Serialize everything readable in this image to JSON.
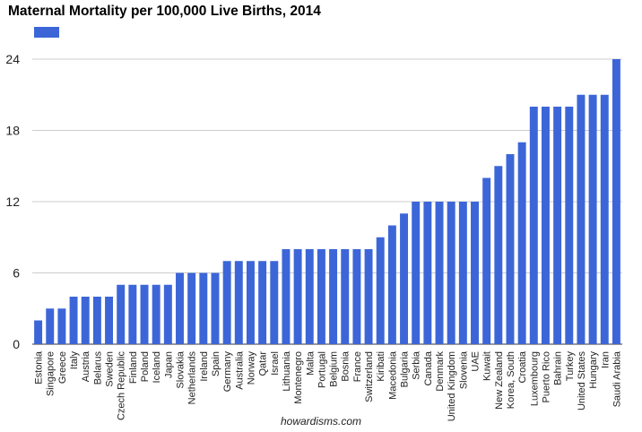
{
  "colors": {
    "bar": "#3c66d8",
    "grid": "#cccccc",
    "axis": "#333333",
    "text": "#222222"
  },
  "credit": "howardisms.com",
  "chart_data": {
    "type": "bar",
    "title": "Maternal Mortality per 100,000 Live Births, 2014",
    "legend": {
      "placement": "top-left",
      "series_name": ""
    },
    "grid": true,
    "ylim": [
      0,
      24
    ],
    "yticks": [
      0,
      6,
      12,
      18,
      24
    ],
    "categories": [
      "Estonia",
      "Singapore",
      "Greece",
      "Italy",
      "Austria",
      "Belarus",
      "Sweden",
      "Czech Republic",
      "Finland",
      "Poland",
      "Iceland",
      "Japan",
      "Slovakia",
      "Netherlands",
      "Ireland",
      "Spain",
      "Germany",
      "Australia",
      "Norway",
      "Qatar",
      "Israel",
      "Lithuania",
      "Montenegro",
      "Malta",
      "Portugal",
      "Belgium",
      "Bosnia",
      "France",
      "Switzerland",
      "Kiribati",
      "Macedonia",
      "Bulgaria",
      "Serbia",
      "Canada",
      "Denmark",
      "United Kingdom",
      "Slovenia",
      "UAE",
      "Kuwait",
      "New Zealand",
      "Korea, South",
      "Croatia",
      "Luxembourg",
      "Puerto Rico",
      "Bahrain",
      "Turkey",
      "United States",
      "Hungary",
      "Iran",
      "Saudi Arabia"
    ],
    "values": [
      2,
      3,
      3,
      4,
      4,
      4,
      4,
      5,
      5,
      5,
      5,
      5,
      6,
      6,
      6,
      6,
      7,
      7,
      7,
      7,
      7,
      8,
      8,
      8,
      8,
      8,
      8,
      8,
      8,
      9,
      10,
      11,
      12,
      12,
      12,
      12,
      12,
      12,
      14,
      15,
      16,
      17,
      20,
      20,
      20,
      20,
      21,
      21,
      21,
      24
    ]
  }
}
